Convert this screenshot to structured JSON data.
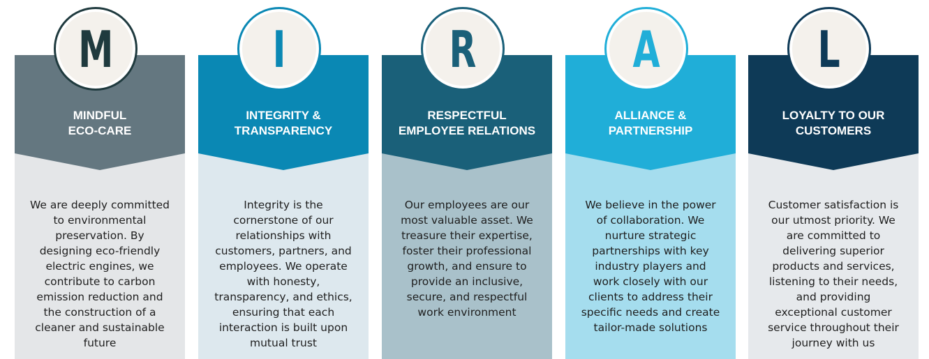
{
  "cards": [
    {
      "letter": "M",
      "title": "MINDFUL\nECO-CARE",
      "description": "We are deeply committed\nto environmental\npreservation. By\ndesigning eco-friendly\nelectric engines, we\ncontribute to carbon\nemission reduction and\nthe construction of a\ncleaner and sustainable\nfuture",
      "colors": {
        "header": "#647780",
        "body": "#e4e6e8",
        "ring": "#1f3a3e"
      }
    },
    {
      "letter": "I",
      "title": "INTEGRITY &\nTRANSPARENCY",
      "description": "Integrity is the\ncornerstone of our\nrelationships with\ncustomers, partners, and\nemployees. We operate\nwith honesty,\ntransparency, and ethics,\nensuring that each\ninteraction is built upon\nmutual trust",
      "colors": {
        "header": "#0a88b4",
        "body": "#dde8ee",
        "ring": "#0a88b4"
      }
    },
    {
      "letter": "R",
      "title": "RESPECTFUL\nEMPLOYEE RELATIONS",
      "description": "Our employees are our\nmost valuable asset. We\ntreasure their expertise,\nfoster their professional\ngrowth, and ensure to\nprovide an inclusive,\nsecure, and respectful\nwork environment",
      "colors": {
        "header": "#1a6079",
        "body": "#a9c1ca",
        "ring": "#1a6079"
      }
    },
    {
      "letter": "A",
      "title": "ALLIANCE &\nPARTNERSHIP",
      "description": "We believe in the power\nof collaboration. We\nnurture strategic\npartnerships with key\nindustry players and\nwork closely with our\nclients to address their\nspecific needs and create\ntailor-made solutions",
      "colors": {
        "header": "#20aed8",
        "body": "#a5ddee",
        "ring": "#20aed8"
      }
    },
    {
      "letter": "L",
      "title": "LOYALTY TO OUR\nCUSTOMERS",
      "description": "Customer satisfaction is\nour utmost priority. We\nare committed to\ndelivering superior\nproducts and services,\nlistening to their needs,\nand providing\nexceptional customer\nservice throughout their\njourney with us",
      "colors": {
        "header": "#0e3a57",
        "body": "#e6e9ec",
        "ring": "#0e3a57"
      }
    }
  ]
}
